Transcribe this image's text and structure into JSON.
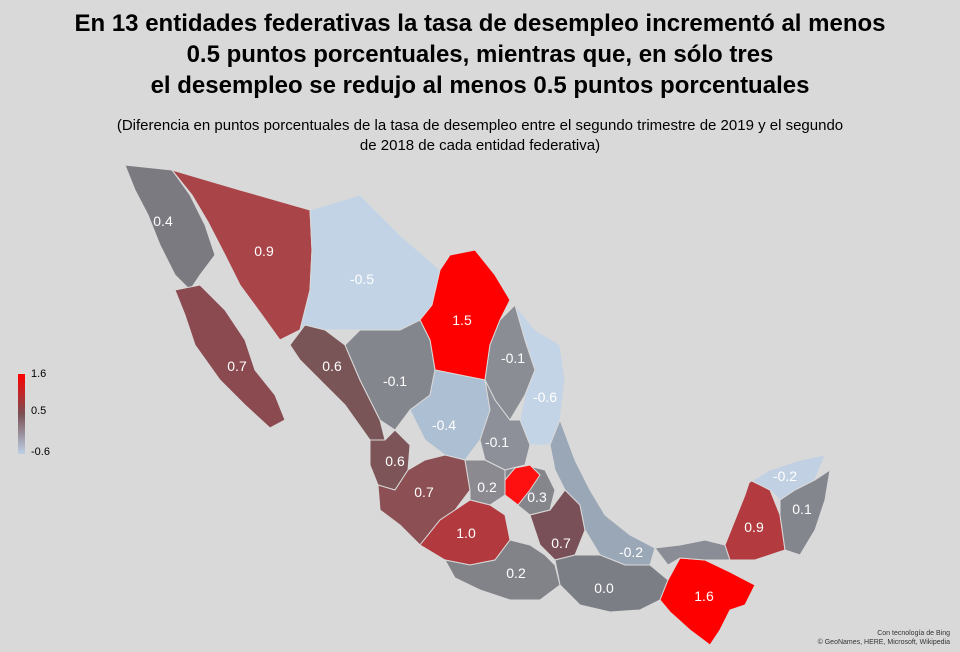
{
  "title": {
    "line1": "En 13 entidades federativas la tasa de desempleo incrementó al menos",
    "line2": "0.5 puntos porcentuales, mientras que, en sólo tres",
    "line3": "el desempleo se redujo al menos 0.5 puntos porcentuales"
  },
  "subtitle": {
    "line1": "(Diferencia en puntos porcentuales de la tasa de desempleo entre el segundo trimestre de 2019 y el segundo",
    "line2": "de 2018 de cada entidad federativa)"
  },
  "legend": {
    "max": "1.6",
    "mid": "0.5",
    "min": "-0.6"
  },
  "colors": {
    "high": "#ff0000",
    "red1": "#d42f2f",
    "mid_red": "#a04a50",
    "mid": "#7a5557",
    "neutral": "#7f7f85",
    "gray": "#8a8d94",
    "light": "#b5c6d8",
    "lighter": "#c3d4e6"
  },
  "states": {
    "baja_california": "0.4",
    "sonora": "0.9",
    "chihuahua": "-0.5",
    "coahuila": "1.5",
    "baja_california_sur": "0.7",
    "sinaloa": "0.6",
    "durango": "-0.1",
    "nuevo_leon": "-0.1",
    "tamaulipas": "-0.6",
    "zacatecas": "-0.4",
    "san_luis_potosi": "-0.1",
    "nayarit": "0.6",
    "jalisco": "0.7",
    "guanajuato": "0.2",
    "hidalgo": "0.3",
    "michoacan": "1.0",
    "puebla": "0.7",
    "veracruz": "-0.2",
    "guerrero": "0.2",
    "oaxaca": "0.0",
    "chiapas": "1.6",
    "campeche": "0.9",
    "yucatan": "-0.2",
    "quintana_roo": "0.1"
  },
  "credit": {
    "line1": "Con tecnología de Bing",
    "line2": "© GeoNames, HERE, Microsoft, Wikipedia"
  }
}
